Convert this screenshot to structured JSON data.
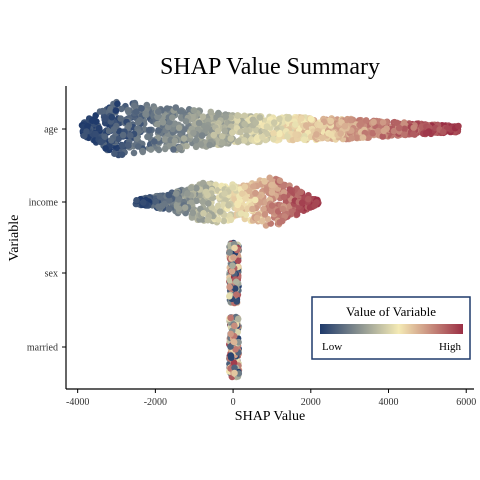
{
  "chart_data": {
    "type": "scatter",
    "title": "SHAP Value Summary",
    "xlabel": "SHAP Value",
    "ylabel": "Variable",
    "xlim": [
      -4300,
      6200
    ],
    "xticks": [
      -4000,
      -2000,
      0,
      2000,
      4000,
      6000
    ],
    "xtick_labels": [
      "-4000",
      "-2000",
      "0",
      "2000",
      "4000",
      "6000"
    ],
    "grid": false,
    "categories": [
      "age",
      "income",
      "sex",
      "married"
    ],
    "series": [
      {
        "category": "age",
        "min": -3900,
        "max": 5800,
        "peak": -2500,
        "low_side": "left"
      },
      {
        "category": "income",
        "min": -2500,
        "max": 2200,
        "peak": 800,
        "low_side": "left"
      },
      {
        "category": "sex",
        "min": -100,
        "max": 150,
        "peak": 0,
        "low_side": "none"
      },
      {
        "category": "married",
        "min": -100,
        "max": 150,
        "peak": 0,
        "low_side": "none"
      }
    ],
    "legend": {
      "title": "Value of Variable",
      "low_label": "Low",
      "high_label": "High",
      "placement": "bottom-right",
      "colors": [
        "#1f3a6b",
        "#f4eab5",
        "#9b2f45"
      ]
    }
  }
}
